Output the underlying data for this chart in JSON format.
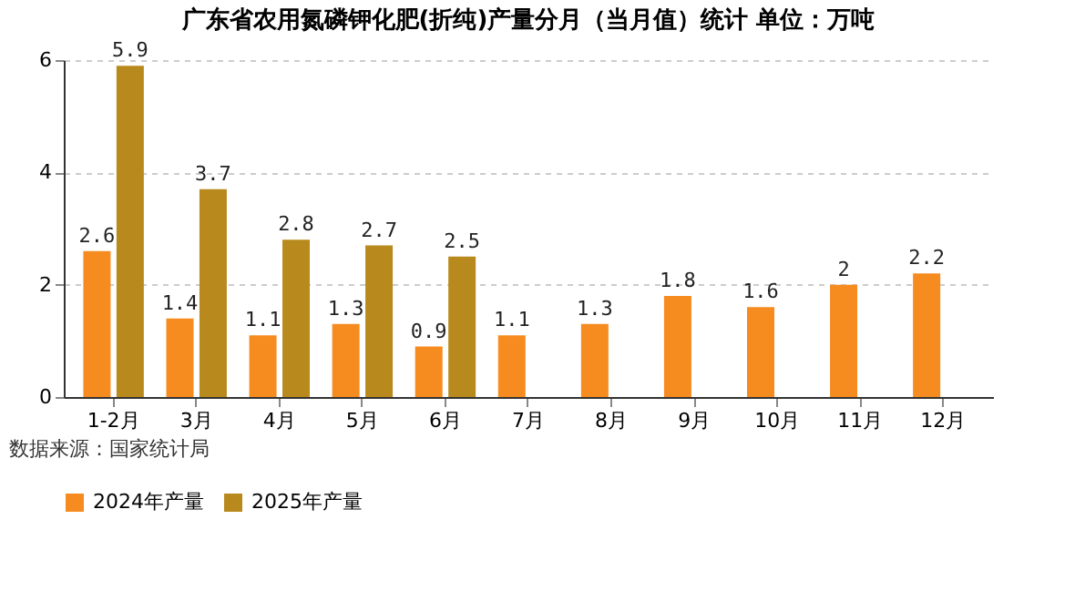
{
  "chart_data": {
    "type": "bar",
    "title": "广东省农用氮磷钾化肥(折纯)产量分月（当月值）统计  单位：万吨",
    "categories": [
      "1-2月",
      "3月",
      "4月",
      "5月",
      "6月",
      "7月",
      "8月",
      "9月",
      "10月",
      "11月",
      "12月"
    ],
    "series": [
      {
        "name": "2024年产量",
        "color": "#f68b1f",
        "values": [
          2.6,
          1.4,
          1.1,
          1.3,
          0.9,
          1.1,
          1.3,
          1.8,
          1.6,
          2,
          2.2
        ]
      },
      {
        "name": "2025年产量",
        "color": "#b8891c",
        "values": [
          5.9,
          3.7,
          2.8,
          2.7,
          2.5,
          null,
          null,
          null,
          null,
          null,
          null
        ]
      }
    ],
    "ylim": [
      0,
      6
    ],
    "yticks": [
      0,
      2,
      4,
      6
    ],
    "grid": "y",
    "legend": "bottom",
    "data_labels": true,
    "annotations": [
      "数据来源：国家统计局"
    ]
  }
}
